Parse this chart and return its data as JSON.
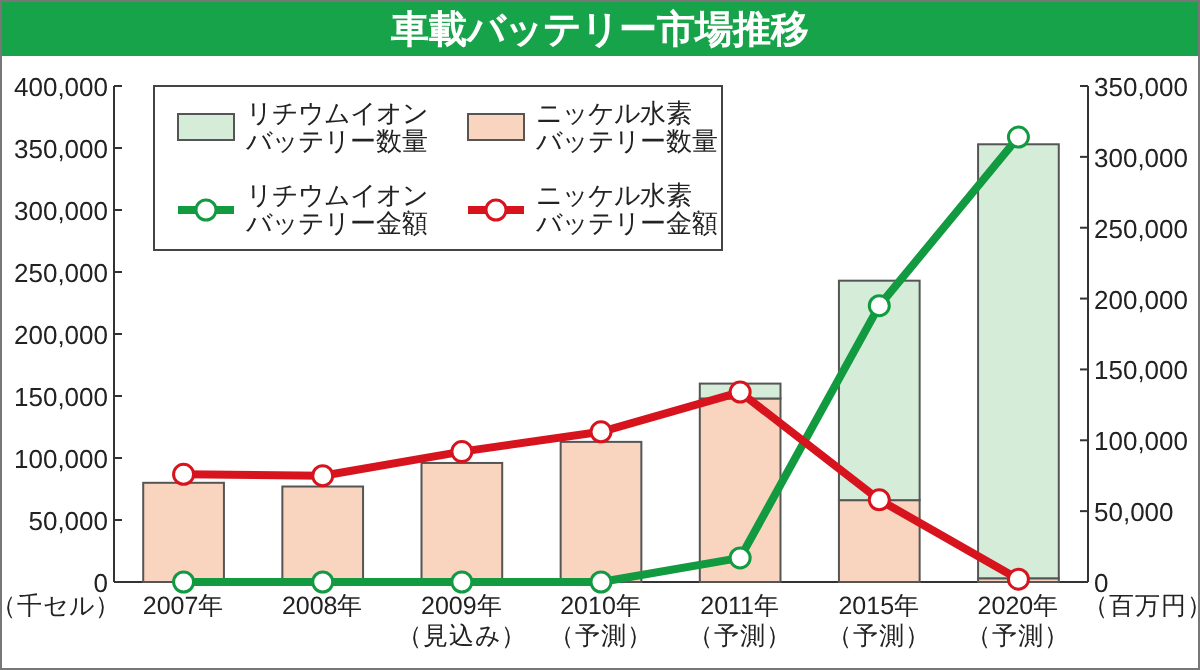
{
  "chart_data": {
    "type": "bar",
    "title": "車載バッテリー市場推移",
    "stacked": true,
    "legend": "top left",
    "marker": "circle",
    "line_style": "solid",
    "grid": false,
    "categories": [
      "2007年",
      "2008年",
      "2009年（見込み）",
      "2010年（予測）",
      "2011年（予測）",
      "2015年（予測）",
      "2020年（予測）"
    ],
    "series": [
      {
        "name": "ニッケル水素バッテリー数量",
        "type": "bar",
        "color": "#f9d5bf",
        "values": [
          80000,
          77000,
          96000,
          113000,
          148000,
          66000,
          3000
        ]
      },
      {
        "name": "リチウムイオンバッテリー数量",
        "type": "bar",
        "color": "#d5ecd9",
        "values": [
          0,
          0,
          0,
          0,
          12000,
          177000,
          350000
        ]
      },
      {
        "name": "リチウムイオンバッテリー金額",
        "type": "line",
        "axis": "y2",
        "color": "#129a40",
        "values": [
          0,
          0,
          0,
          0,
          17000,
          195000,
          314000
        ]
      },
      {
        "name": "ニッケル水素バッテリー金額",
        "type": "line",
        "axis": "y2",
        "color": "#d7141e",
        "values": [
          76000,
          75000,
          92000,
          106000,
          134000,
          58000,
          2000
        ]
      }
    ],
    "ylabel": "（千セル）",
    "y2label": "（百万円）",
    "ylim": [
      0,
      400000
    ],
    "yticks": [
      0,
      {
        "value": 50000,
        "label": "50,000"
      },
      {
        "value": 100000,
        "label": "100,000"
      },
      {
        "value": 150000,
        "label": "150,000"
      },
      {
        "value": 200000,
        "label": "200,000"
      },
      {
        "value": 250000,
        "label": "250,000"
      },
      {
        "value": 300000,
        "label": "300,000"
      },
      {
        "value": 350000,
        "label": "350,000"
      },
      {
        "value": 400000,
        "label": "400,000"
      }
    ],
    "y2lim": [
      0,
      350000
    ],
    "y2ticks": [
      0,
      {
        "value": 50000,
        "label": "50,000"
      },
      {
        "value": 100000,
        "label": "100,000"
      },
      {
        "value": 150000,
        "label": "150,000"
      },
      {
        "value": 200000,
        "label": "200,000"
      },
      {
        "value": 250000,
        "label": "250,000"
      },
      {
        "value": 300000,
        "label": "300,000"
      },
      {
        "value": 350000,
        "label": "350,000"
      }
    ]
  }
}
